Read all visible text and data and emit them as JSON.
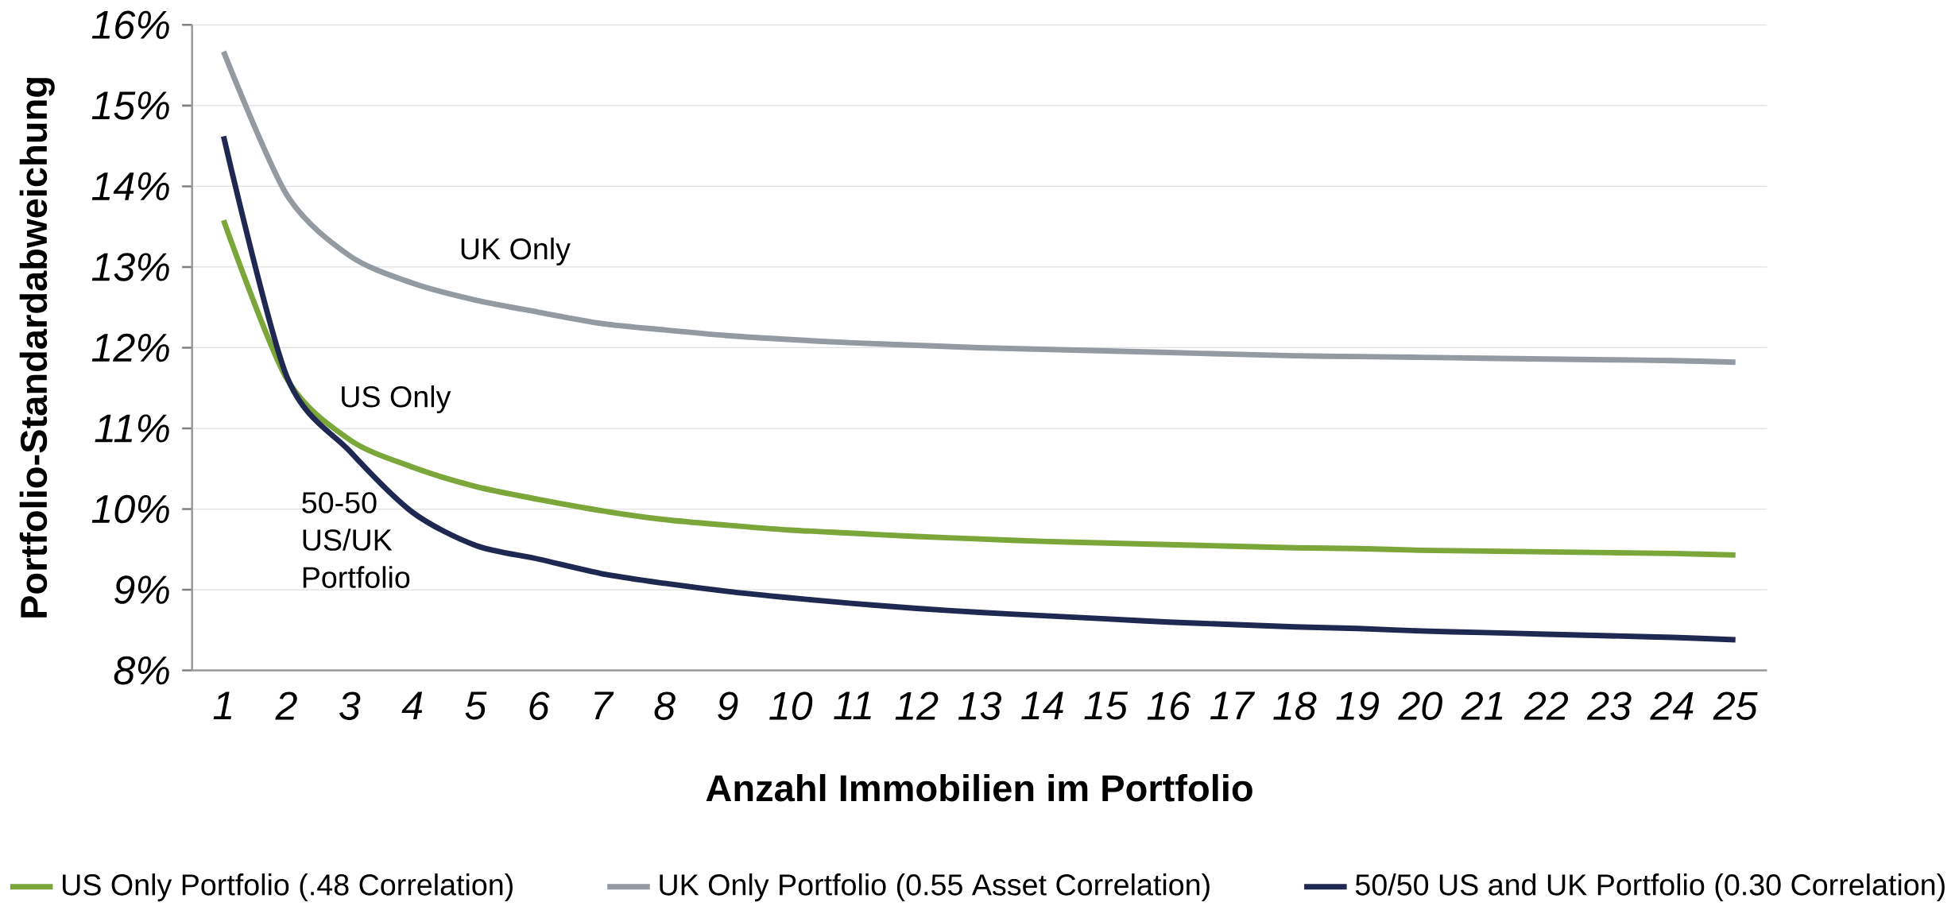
{
  "chart_data": {
    "type": "line",
    "xlabel": "Anzahl Immobilien im Portfolio",
    "ylabel": "Portfolio-Standardabweichung",
    "categories": [
      "1",
      "2",
      "3",
      "4",
      "5",
      "6",
      "7",
      "8",
      "9",
      "10",
      "11",
      "12",
      "13",
      "14",
      "15",
      "16",
      "17",
      "18",
      "19",
      "20",
      "21",
      "22",
      "23",
      "24",
      "25"
    ],
    "series": [
      {
        "name": "US Only Portfolio (.48 Correlation)",
        "color": "#7aa63a",
        "values": [
          13.58,
          11.62,
          10.86,
          10.52,
          10.28,
          10.12,
          9.98,
          9.87,
          9.8,
          9.74,
          9.7,
          9.66,
          9.63,
          9.6,
          9.58,
          9.56,
          9.54,
          9.52,
          9.51,
          9.49,
          9.48,
          9.47,
          9.46,
          9.45,
          9.43
        ]
      },
      {
        "name": "UK Only Portfolio (0.55 Asset Correlation)",
        "color": "#939aa1",
        "values": [
          15.67,
          13.9,
          13.14,
          12.8,
          12.59,
          12.44,
          12.3,
          12.22,
          12.15,
          12.1,
          12.06,
          12.03,
          12.0,
          11.98,
          11.96,
          11.94,
          11.92,
          11.9,
          11.89,
          11.88,
          11.87,
          11.86,
          11.85,
          11.84,
          11.82
        ]
      },
      {
        "name": "50/50 US and UK Portfolio (0.30 Correlation)",
        "color": "#1f2850",
        "values": [
          14.62,
          11.65,
          10.72,
          9.96,
          9.55,
          9.38,
          9.2,
          9.08,
          8.98,
          8.9,
          8.83,
          8.77,
          8.72,
          8.68,
          8.64,
          8.6,
          8.57,
          8.54,
          8.52,
          8.49,
          8.47,
          8.45,
          8.43,
          8.41,
          8.38
        ]
      }
    ],
    "ylim": [
      8,
      16
    ],
    "yticks": [
      {
        "value": 8,
        "label": "8%"
      },
      {
        "value": 9,
        "label": "9%"
      },
      {
        "value": 10,
        "label": "10%"
      },
      {
        "value": 11,
        "label": "11%"
      },
      {
        "value": 12,
        "label": "12%"
      },
      {
        "value": 13,
        "label": "13%"
      },
      {
        "value": 14,
        "label": "14%"
      },
      {
        "value": 15,
        "label": "15%"
      },
      {
        "value": 16,
        "label": "16%"
      }
    ],
    "annotations": [
      "UK Only",
      "US Only",
      "50-50 US/UK Portfolio"
    ],
    "grid": "y",
    "legend": "bottom",
    "marker": "none",
    "line_style": "solid"
  }
}
